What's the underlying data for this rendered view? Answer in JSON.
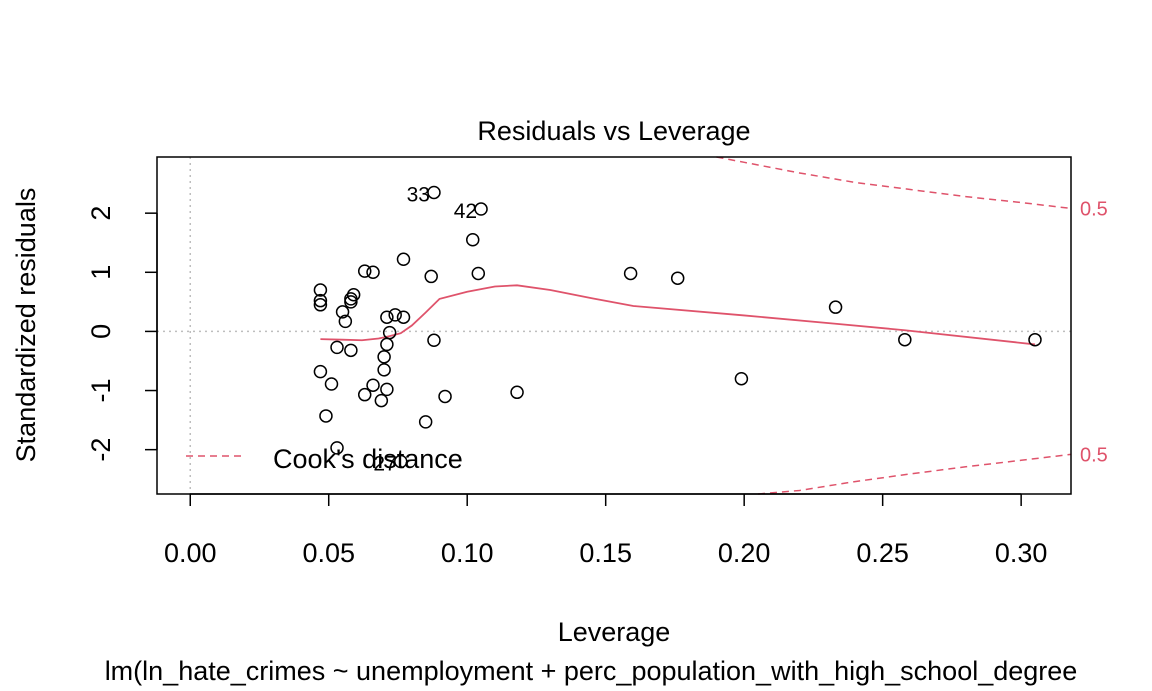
{
  "chart_data": {
    "type": "scatter",
    "title": "Residuals vs Leverage",
    "xlabel": "Leverage",
    "ylabel": "Standardized residuals",
    "subtitle": "lm(ln_hate_crimes ~ unemployment + perc_population_with_high_school_degree",
    "xlim": [
      -0.012,
      0.318
    ],
    "ylim": [
      -2.75,
      2.95
    ],
    "x_ticks": [
      "0.00",
      "0.05",
      "0.10",
      "0.15",
      "0.20",
      "0.25",
      "0.30"
    ],
    "x_tick_values": [
      0.0,
      0.05,
      0.1,
      0.15,
      0.2,
      0.25,
      0.3
    ],
    "y_ticks": [
      "-2",
      "-1",
      "0",
      "1",
      "2"
    ],
    "y_tick_values": [
      -2,
      -1,
      0,
      1,
      2
    ],
    "grid": false,
    "reference_lines": {
      "vertical_x": 0,
      "horizontal_y": 0
    },
    "points": [
      {
        "x": 0.088,
        "y": 2.35,
        "label": "33"
      },
      {
        "x": 0.105,
        "y": 2.07,
        "label": "42"
      },
      {
        "x": 0.102,
        "y": 1.55
      },
      {
        "x": 0.077,
        "y": 1.22
      },
      {
        "x": 0.063,
        "y": 1.02
      },
      {
        "x": 0.066,
        "y": 1.0
      },
      {
        "x": 0.087,
        "y": 0.93
      },
      {
        "x": 0.104,
        "y": 0.98
      },
      {
        "x": 0.159,
        "y": 0.98
      },
      {
        "x": 0.176,
        "y": 0.9
      },
      {
        "x": 0.233,
        "y": 0.41
      },
      {
        "x": 0.047,
        "y": 0.7
      },
      {
        "x": 0.047,
        "y": 0.52
      },
      {
        "x": 0.047,
        "y": 0.45
      },
      {
        "x": 0.059,
        "y": 0.62
      },
      {
        "x": 0.058,
        "y": 0.55
      },
      {
        "x": 0.058,
        "y": 0.5
      },
      {
        "x": 0.055,
        "y": 0.33
      },
      {
        "x": 0.056,
        "y": 0.17
      },
      {
        "x": 0.074,
        "y": 0.28
      },
      {
        "x": 0.077,
        "y": 0.24
      },
      {
        "x": 0.071,
        "y": 0.24
      },
      {
        "x": 0.072,
        "y": -0.02
      },
      {
        "x": 0.053,
        "y": -0.27
      },
      {
        "x": 0.058,
        "y": -0.32
      },
      {
        "x": 0.071,
        "y": -0.22
      },
      {
        "x": 0.088,
        "y": -0.15
      },
      {
        "x": 0.258,
        "y": -0.14
      },
      {
        "x": 0.305,
        "y": -0.14
      },
      {
        "x": 0.07,
        "y": -0.43
      },
      {
        "x": 0.07,
        "y": -0.65
      },
      {
        "x": 0.047,
        "y": -0.68
      },
      {
        "x": 0.051,
        "y": -0.89
      },
      {
        "x": 0.066,
        "y": -0.91
      },
      {
        "x": 0.071,
        "y": -0.98
      },
      {
        "x": 0.063,
        "y": -1.07
      },
      {
        "x": 0.069,
        "y": -1.17
      },
      {
        "x": 0.092,
        "y": -1.1
      },
      {
        "x": 0.118,
        "y": -1.03
      },
      {
        "x": 0.199,
        "y": -0.8
      },
      {
        "x": 0.049,
        "y": -1.43
      },
      {
        "x": 0.085,
        "y": -1.53
      },
      {
        "x": 0.053,
        "y": -1.97
      },
      {
        "x": 0.076,
        "y": -2.2,
        "label": "27"
      }
    ],
    "smooth_line": {
      "x": [
        0.047,
        0.055,
        0.062,
        0.068,
        0.072,
        0.076,
        0.08,
        0.085,
        0.09,
        0.1,
        0.11,
        0.118,
        0.13,
        0.145,
        0.16,
        0.2,
        0.233,
        0.258,
        0.305
      ],
      "y": [
        -0.13,
        -0.14,
        -0.15,
        -0.12,
        -0.08,
        -0.03,
        0.1,
        0.32,
        0.55,
        0.67,
        0.76,
        0.78,
        0.7,
        0.56,
        0.43,
        0.27,
        0.13,
        0.02,
        -0.22
      ]
    },
    "cooks_contours": [
      {
        "level": "0.5",
        "x": [
          0.19,
          0.2,
          0.22,
          0.24,
          0.26,
          0.28,
          0.3,
          0.318
        ],
        "y": [
          2.95,
          2.86,
          2.68,
          2.52,
          2.4,
          2.28,
          2.18,
          2.08
        ]
      },
      {
        "level": "0.5",
        "x": [
          0.205,
          0.22,
          0.24,
          0.26,
          0.28,
          0.3,
          0.318
        ],
        "y": [
          -2.75,
          -2.69,
          -2.54,
          -2.41,
          -2.29,
          -2.18,
          -2.08
        ]
      }
    ],
    "contour_labels": [
      "0.5",
      "0.5"
    ],
    "legend": {
      "position": "bottom-left",
      "entries": [
        {
          "label": "Cook's distance",
          "style": "dashed"
        }
      ]
    },
    "colors": {
      "points": "#000000",
      "smooth": "#DF536B",
      "cooks": "#DF536B",
      "reference": "#BEBEBE"
    }
  }
}
